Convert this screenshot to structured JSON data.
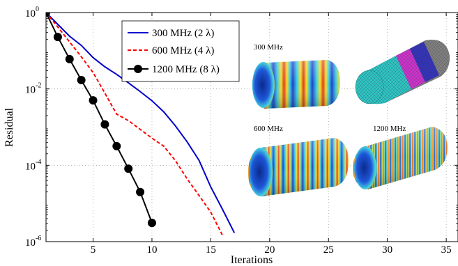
{
  "chart_data": {
    "type": "line",
    "xlabel": "Iterations",
    "ylabel": "Residual",
    "xlim": [
      1,
      36
    ],
    "ylim_log10": [
      -6,
      0
    ],
    "y_scale": "log",
    "grid": true,
    "legend_position": "top-left",
    "x_ticks": [
      "5",
      "10",
      "15",
      "20",
      "25",
      "30",
      "35"
    ],
    "x_tick_values": [
      5,
      10,
      15,
      20,
      25,
      30,
      35
    ],
    "y_ticks": [
      {
        "value": 0,
        "base": "10",
        "exp": "0"
      },
      {
        "value": -2,
        "base": "10",
        "exp": "-2"
      },
      {
        "value": -4,
        "base": "10",
        "exp": "-4"
      },
      {
        "value": -6,
        "base": "10",
        "exp": "-6"
      }
    ],
    "series": [
      {
        "name": "300 MHz (2 λ)",
        "color": "#0000cc",
        "style": "solid",
        "marker": "none",
        "x": [
          1,
          2,
          3,
          4,
          5,
          6,
          7,
          8,
          9,
          10,
          11,
          12,
          13,
          14,
          15,
          16,
          17
        ],
        "log10_y": [
          0,
          -0.31,
          -0.62,
          -0.86,
          -1.18,
          -1.42,
          -1.62,
          -1.84,
          -2.07,
          -2.31,
          -2.6,
          -2.97,
          -3.39,
          -3.87,
          -4.57,
          -5.16,
          -5.77
        ]
      },
      {
        "name": "600 MHz (4 λ)",
        "color": "#ff0000",
        "style": "dashed",
        "marker": "none",
        "x": [
          1,
          2,
          3,
          4,
          5,
          6,
          7,
          8,
          9,
          10,
          11,
          12,
          13,
          14,
          15,
          16
        ],
        "log10_y": [
          0,
          -0.38,
          -0.77,
          -1.16,
          -1.57,
          -2.11,
          -2.66,
          -2.83,
          -3.06,
          -3.29,
          -3.5,
          -3.88,
          -4.36,
          -4.79,
          -5.23,
          -5.84
        ]
      },
      {
        "name": "1200 MHz (8 λ)",
        "color": "#000000",
        "style": "solid",
        "marker": "circle",
        "x": [
          1,
          2,
          3,
          4,
          5,
          6,
          7,
          8,
          9,
          10
        ],
        "log10_y": [
          0,
          -0.64,
          -1.22,
          -1.77,
          -2.3,
          -2.93,
          -3.5,
          -4.09,
          -4.7,
          -5.51
        ]
      }
    ],
    "annotations": [
      {
        "text": "300 MHz"
      },
      {
        "text": "600 MHz"
      },
      {
        "text": "1200 MHz"
      }
    ]
  }
}
